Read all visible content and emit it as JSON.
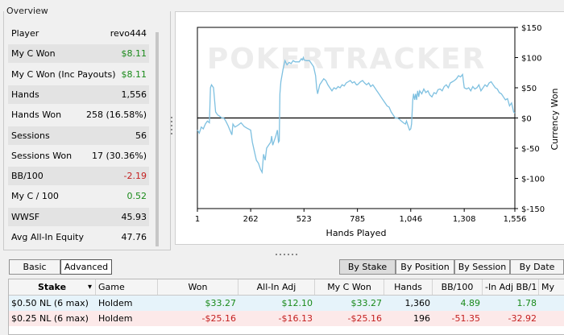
{
  "overview": {
    "title": "Overview",
    "stats": [
      {
        "label": "Player",
        "value": "revo444",
        "tone": ""
      },
      {
        "label": "My C Won",
        "value": "$8.11",
        "tone": "pos"
      },
      {
        "label": "My C Won (Inc Payouts)",
        "value": "$8.11",
        "tone": "pos"
      },
      {
        "label": "Hands",
        "value": "1,556",
        "tone": ""
      },
      {
        "label": "Hands Won",
        "value": "258 (16.58%)",
        "tone": ""
      },
      {
        "label": "Sessions",
        "value": "56",
        "tone": ""
      },
      {
        "label": "Sessions Won",
        "value": "17 (30.36%)",
        "tone": ""
      },
      {
        "label": "BB/100",
        "value": "-2.19",
        "tone": "neg"
      },
      {
        "label": "My C / 100",
        "value": "0.52",
        "tone": "pos"
      },
      {
        "label": "WWSF",
        "value": "45.93",
        "tone": ""
      },
      {
        "label": "Avg All-In Equity",
        "value": "47.76",
        "tone": ""
      }
    ]
  },
  "chart": {
    "watermark": "POKERTRACKER",
    "xlabel": "Hands Played",
    "ylabel": "Currency Won",
    "line_color": "#7ec0e0"
  },
  "chart_data": {
    "type": "line",
    "xlabel": "Hands Played",
    "ylabel": "Currency Won",
    "xlim": [
      1,
      1556
    ],
    "ylim": [
      -150,
      150
    ],
    "x_ticks": [
      "1",
      "262",
      "523",
      "785",
      "1,046",
      "1,308",
      "1,556"
    ],
    "y_ticks": [
      "$150",
      "$100",
      "$50",
      "$0",
      "$-50",
      "$-100",
      "$-150"
    ],
    "series": [
      {
        "points": [
          [
            1,
            -20
          ],
          [
            10,
            -25
          ],
          [
            20,
            -15
          ],
          [
            30,
            -18
          ],
          [
            40,
            -10
          ],
          [
            50,
            -5
          ],
          [
            60,
            -8
          ],
          [
            65,
            50
          ],
          [
            70,
            55
          ],
          [
            80,
            50
          ],
          [
            85,
            30
          ],
          [
            90,
            10
          ],
          [
            100,
            5
          ],
          [
            110,
            3
          ],
          [
            120,
            0
          ],
          [
            130,
            0
          ],
          [
            140,
            -5
          ],
          [
            150,
            -12
          ],
          [
            160,
            -20
          ],
          [
            170,
            -28
          ],
          [
            175,
            -10
          ],
          [
            185,
            -15
          ],
          [
            200,
            -12
          ],
          [
            215,
            -8
          ],
          [
            230,
            -14
          ],
          [
            245,
            -17
          ],
          [
            262,
            -20
          ],
          [
            270,
            -40
          ],
          [
            280,
            -55
          ],
          [
            290,
            -70
          ],
          [
            300,
            -75
          ],
          [
            310,
            -85
          ],
          [
            318,
            -90
          ],
          [
            325,
            -60
          ],
          [
            333,
            -70
          ],
          [
            340,
            -50
          ],
          [
            350,
            -45
          ],
          [
            360,
            -40
          ],
          [
            365,
            -30
          ],
          [
            370,
            -45
          ],
          [
            380,
            -35
          ],
          [
            385,
            -30
          ],
          [
            393,
            -20
          ],
          [
            398,
            -40
          ],
          [
            402,
            -38
          ],
          [
            405,
            40
          ],
          [
            410,
            60
          ],
          [
            420,
            80
          ],
          [
            430,
            95
          ],
          [
            440,
            88
          ],
          [
            450,
            92
          ],
          [
            460,
            90
          ],
          [
            470,
            95
          ],
          [
            480,
            93
          ],
          [
            500,
            93
          ],
          [
            510,
            98
          ],
          [
            515,
            96
          ],
          [
            520,
            100
          ],
          [
            523,
            96
          ],
          [
            535,
            95
          ],
          [
            550,
            95
          ],
          [
            560,
            90
          ],
          [
            570,
            85
          ],
          [
            580,
            70
          ],
          [
            585,
            50
          ],
          [
            590,
            40
          ],
          [
            600,
            55
          ],
          [
            610,
            60
          ],
          [
            620,
            65
          ],
          [
            630,
            62
          ],
          [
            640,
            55
          ],
          [
            650,
            50
          ],
          [
            660,
            45
          ],
          [
            670,
            50
          ],
          [
            680,
            48
          ],
          [
            690,
            52
          ],
          [
            700,
            50
          ],
          [
            710,
            55
          ],
          [
            720,
            53
          ],
          [
            730,
            58
          ],
          [
            740,
            60
          ],
          [
            750,
            62
          ],
          [
            760,
            58
          ],
          [
            770,
            60
          ],
          [
            780,
            55
          ],
          [
            785,
            55
          ],
          [
            800,
            60
          ],
          [
            810,
            62
          ],
          [
            820,
            58
          ],
          [
            830,
            55
          ],
          [
            840,
            58
          ],
          [
            850,
            52
          ],
          [
            860,
            55
          ],
          [
            870,
            50
          ],
          [
            880,
            45
          ],
          [
            890,
            40
          ],
          [
            900,
            35
          ],
          [
            910,
            30
          ],
          [
            920,
            25
          ],
          [
            930,
            20
          ],
          [
            940,
            18
          ],
          [
            950,
            10
          ],
          [
            960,
            5
          ],
          [
            970,
            0
          ],
          [
            980,
            0
          ],
          [
            990,
            -2
          ],
          [
            1000,
            -5
          ],
          [
            1010,
            -8
          ],
          [
            1020,
            -10
          ],
          [
            1025,
            -5
          ],
          [
            1030,
            -10
          ],
          [
            1035,
            -15
          ],
          [
            1040,
            -20
          ],
          [
            1046,
            -18
          ],
          [
            1050,
            -10
          ],
          [
            1056,
            30
          ],
          [
            1060,
            40
          ],
          [
            1065,
            30
          ],
          [
            1070,
            40
          ],
          [
            1075,
            30
          ],
          [
            1080,
            45
          ],
          [
            1085,
            35
          ],
          [
            1090,
            45
          ],
          [
            1100,
            40
          ],
          [
            1110,
            48
          ],
          [
            1120,
            42
          ],
          [
            1130,
            45
          ],
          [
            1140,
            38
          ],
          [
            1150,
            35
          ],
          [
            1160,
            42
          ],
          [
            1170,
            40
          ],
          [
            1180,
            47
          ],
          [
            1190,
            48
          ],
          [
            1200,
            45
          ],
          [
            1210,
            52
          ],
          [
            1220,
            55
          ],
          [
            1230,
            50
          ],
          [
            1240,
            58
          ],
          [
            1250,
            60
          ],
          [
            1260,
            62
          ],
          [
            1270,
            65
          ],
          [
            1280,
            70
          ],
          [
            1290,
            68
          ],
          [
            1300,
            72
          ],
          [
            1308,
            50
          ],
          [
            1320,
            48
          ],
          [
            1330,
            50
          ],
          [
            1340,
            45
          ],
          [
            1350,
            52
          ],
          [
            1360,
            48
          ],
          [
            1370,
            50
          ],
          [
            1380,
            55
          ],
          [
            1390,
            45
          ],
          [
            1400,
            50
          ],
          [
            1410,
            55
          ],
          [
            1420,
            52
          ],
          [
            1430,
            58
          ],
          [
            1440,
            60
          ],
          [
            1450,
            55
          ],
          [
            1460,
            50
          ],
          [
            1470,
            48
          ],
          [
            1480,
            42
          ],
          [
            1490,
            40
          ],
          [
            1500,
            35
          ],
          [
            1510,
            30
          ],
          [
            1520,
            32
          ],
          [
            1530,
            20
          ],
          [
            1540,
            25
          ],
          [
            1550,
            10
          ],
          [
            1556,
            8
          ]
        ]
      }
    ],
    "grid": false
  },
  "buttons": {
    "basic": "Basic",
    "advanced": "Advanced",
    "by_stake": "By Stake",
    "by_position": "By Position",
    "by_session": "By Session",
    "by_date": "By Date"
  },
  "table": {
    "headers": [
      "Stake",
      "Game",
      "Won",
      "All-In Adj",
      "My C Won",
      "Hands",
      "BB/100",
      "-In Adj BB/1",
      "My"
    ],
    "rows": [
      {
        "cells": [
          "$0.50 NL (6 max)",
          "Holdem",
          "$33.27",
          "$12.10",
          "$33.27",
          "1,360",
          "4.89",
          "1.78",
          ""
        ],
        "tone": "pos"
      },
      {
        "cells": [
          "$0.25 NL (6 max)",
          "Holdem",
          "-$25.16",
          "-$16.13",
          "-$25.16",
          "196",
          "-51.35",
          "-32.92",
          ""
        ],
        "tone": "neg"
      }
    ]
  }
}
